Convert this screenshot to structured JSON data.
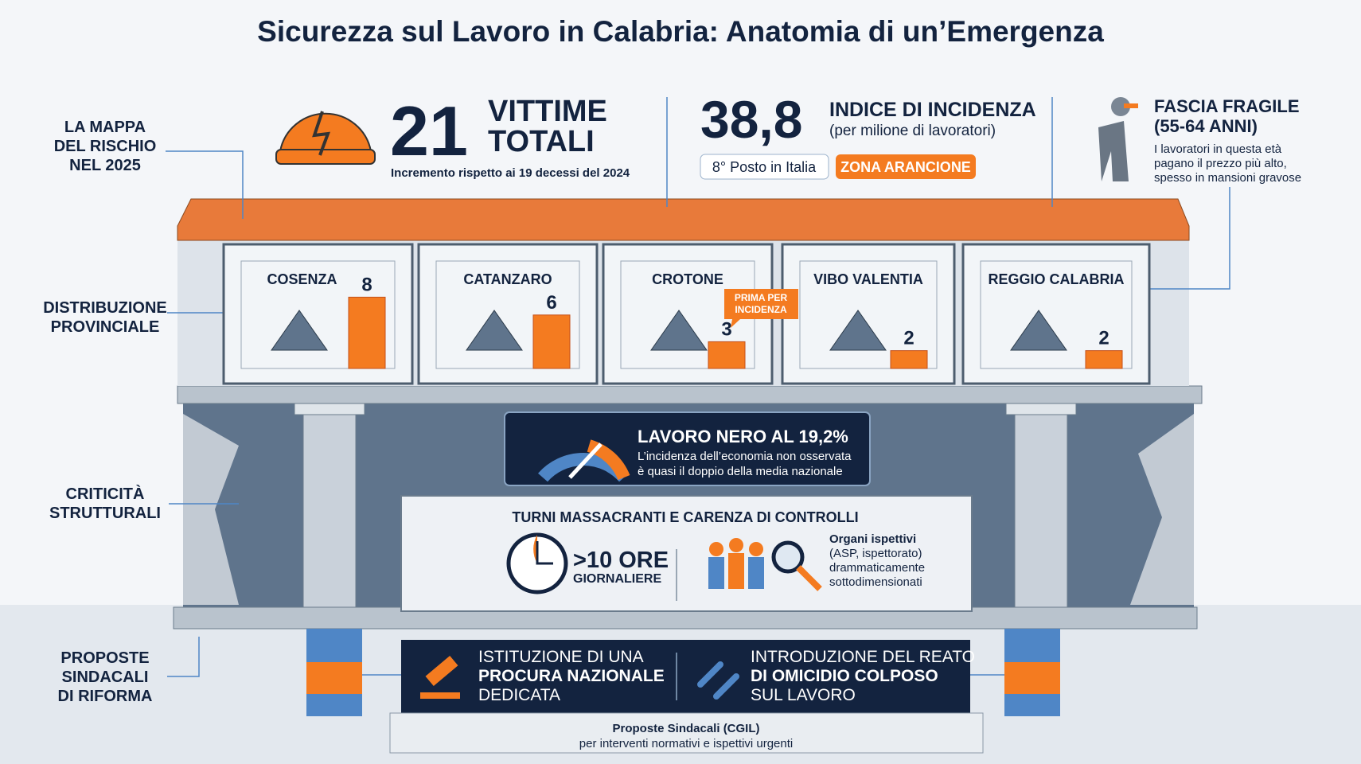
{
  "title": "Sicurezza sul Lavoro in Calabria: Anatomia di un’Emergenza",
  "side_labels": [
    {
      "lines": [
        "LA MAPPA",
        "DEL RISCHIO",
        "NEL 2025"
      ]
    },
    {
      "lines": [
        "DISTRIBUZIONE",
        "PROVINCIALE"
      ]
    },
    {
      "lines": [
        "CRITICITÀ",
        "STRUTTURALI"
      ]
    },
    {
      "lines": [
        "PROPOSTE",
        "SINDACALI",
        "DI RIFORMA"
      ]
    }
  ],
  "victims": {
    "value": "21",
    "label_lines": [
      "VITTIME",
      "TOTALI"
    ],
    "note": "Incremento rispetto ai 19 decessi del 2024"
  },
  "incidence": {
    "value": "38,8",
    "label": "INDICE DI INCIDENZA",
    "sub": "(per milione di lavoratori)",
    "rank": "8° Posto in Italia",
    "zone": "ZONA ARANCIONE"
  },
  "fragile": {
    "title_lines": [
      "FASCIA FRAGILE",
      "(55-64 ANNI)"
    ],
    "text_lines": [
      "I lavoratori in questa età",
      "pagano il prezzo più alto,",
      "spesso in mansioni gravose"
    ]
  },
  "provinces": {
    "names": [
      "COSENZA",
      "CATANZARO",
      "CROTONE",
      "VIBO VALENTIA",
      "REGGIO CALABRIA"
    ],
    "values": [
      8,
      6,
      3,
      2,
      2
    ],
    "callout_lines": [
      "PRIMA PER",
      "INCIDENZA"
    ]
  },
  "black_labor": {
    "title": "LAVORO NERO AL 19,2%",
    "text_lines": [
      "L’incidenza dell’economia non osservata",
      "è quasi il doppio della media nazionale"
    ]
  },
  "shifts": {
    "title": "TURNI MASSACRANTI E CARENZA DI CONTROLLI",
    "hours": ">10 ORE",
    "hours_sub": "GIORNALIERE",
    "inspectors_title": "Organi ispettivi",
    "inspectors_lines": [
      "(ASP, ispettorato)",
      "drammaticamente",
      "sottodimensionati"
    ]
  },
  "proposals": [
    {
      "lines": [
        "ISTITUZIONE DI UNA",
        "PROCURA NAZIONALE",
        "DEDICATA"
      ]
    },
    {
      "lines": [
        "INTRODUZIONE DEL REATO",
        "DI OMICIDIO COLPOSO",
        "SUL LAVORO"
      ]
    }
  ],
  "footer": {
    "title": "Proposte Sindacali (CGIL)",
    "text": "per interventi normativi e ispettivi urgenti"
  }
}
